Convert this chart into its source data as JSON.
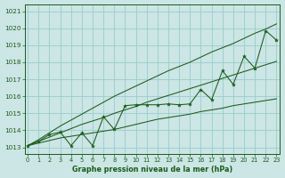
{
  "title": "Graphe pression niveau de la mer (hPa)",
  "bg_color": "#cce5e5",
  "grid_color": "#99cccc",
  "line_color": "#1a5c1a",
  "text_color": "#1a5c1a",
  "xlim": [
    -0.3,
    23.3
  ],
  "ylim": [
    1012.6,
    1021.4
  ],
  "yticks": [
    1013,
    1014,
    1015,
    1016,
    1017,
    1018,
    1019,
    1020,
    1021
  ],
  "xticks": [
    0,
    1,
    2,
    3,
    4,
    5,
    6,
    7,
    8,
    9,
    10,
    11,
    12,
    13,
    14,
    15,
    16,
    17,
    18,
    19,
    20,
    21,
    22,
    23
  ],
  "x": [
    0,
    1,
    2,
    3,
    4,
    5,
    6,
    7,
    8,
    9,
    10,
    11,
    12,
    13,
    14,
    15,
    16,
    17,
    18,
    19,
    20,
    21,
    22,
    23
  ],
  "y_main": [
    1013.1,
    1013.35,
    1013.75,
    1013.9,
    1013.1,
    1013.85,
    1013.1,
    1014.8,
    1014.05,
    1015.45,
    1015.5,
    1015.5,
    1015.5,
    1015.55,
    1015.5,
    1015.55,
    1016.4,
    1015.8,
    1017.5,
    1016.7,
    1018.35,
    1017.65,
    1019.85,
    1019.3
  ],
  "y_upper": [
    1013.1,
    1013.45,
    1013.85,
    1014.25,
    1014.6,
    1014.95,
    1015.3,
    1015.65,
    1016.0,
    1016.3,
    1016.6,
    1016.9,
    1017.2,
    1017.5,
    1017.75,
    1018.0,
    1018.3,
    1018.6,
    1018.85,
    1019.1,
    1019.4,
    1019.7,
    1019.95,
    1020.25
  ],
  "y_lower": [
    1013.1,
    1013.25,
    1013.4,
    1013.55,
    1013.65,
    1013.75,
    1013.85,
    1013.95,
    1014.05,
    1014.2,
    1014.35,
    1014.5,
    1014.65,
    1014.75,
    1014.85,
    1014.95,
    1015.1,
    1015.2,
    1015.3,
    1015.45,
    1015.55,
    1015.65,
    1015.75,
    1015.85
  ],
  "y_mid": [
    1013.1,
    1013.35,
    1013.6,
    1013.85,
    1014.1,
    1014.35,
    1014.55,
    1014.75,
    1015.0,
    1015.2,
    1015.4,
    1015.65,
    1015.85,
    1016.05,
    1016.25,
    1016.45,
    1016.65,
    1016.85,
    1017.05,
    1017.25,
    1017.45,
    1017.65,
    1017.85,
    1018.05
  ],
  "figsize": [
    3.2,
    2.0
  ],
  "dpi": 100
}
